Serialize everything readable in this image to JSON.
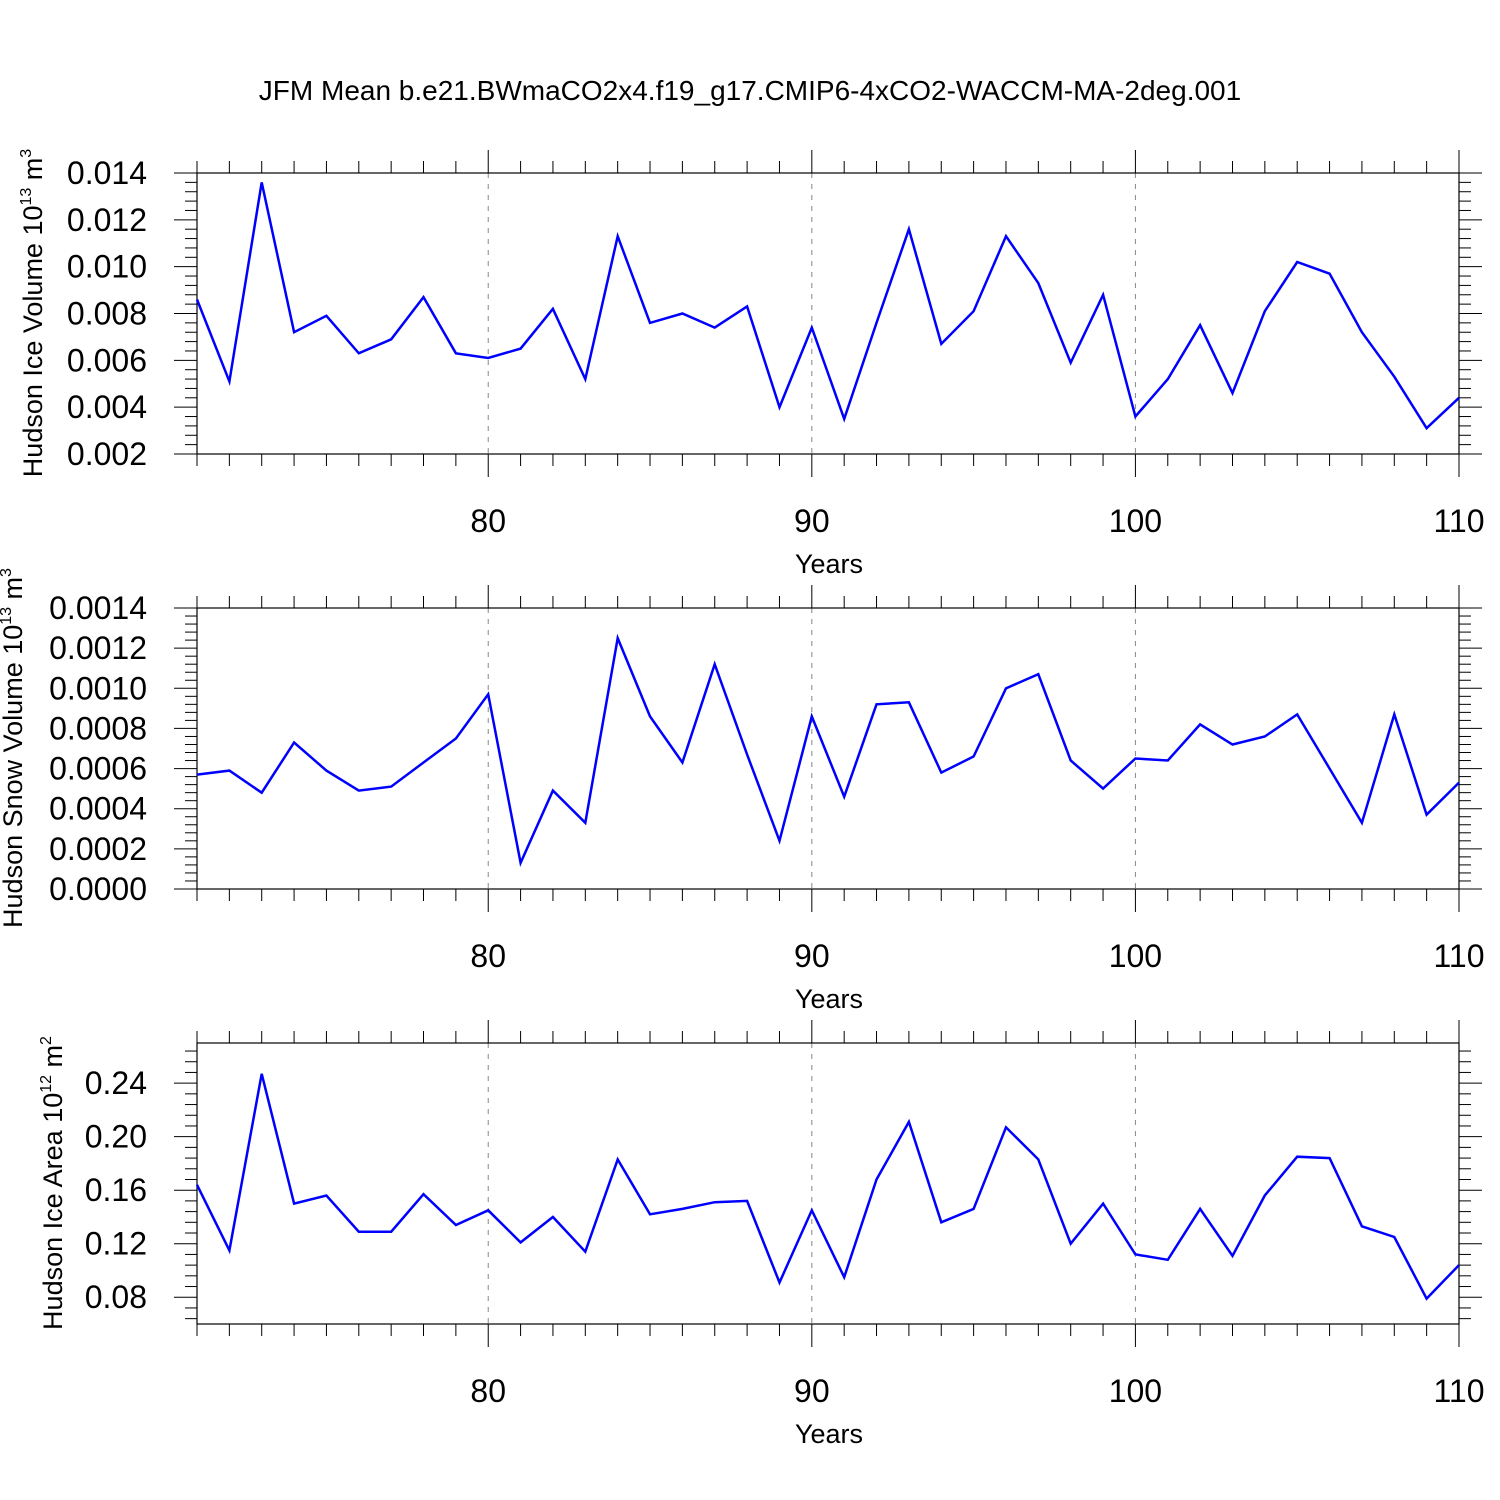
{
  "figure": {
    "title": "JFM Mean b.e21.BWmaCO2x4.f19_g17.CMIP6-4xCO2-WACCM-MA-2deg.001"
  },
  "colors": {
    "line": "#0000ff",
    "axis": "#000000",
    "grid": "#888888"
  },
  "chart_data": [
    {
      "type": "line",
      "title": "JFM Mean b.e21.BWmaCO2x4.f19_g17.CMIP6-4xCO2-WACCM-MA-2deg.001",
      "xlabel": "Years",
      "ylabel": {
        "text": "Hudson Ice Volume 10",
        "sup": "13",
        "unit": " m",
        "unitsup": "3"
      },
      "xlim": [
        71,
        110
      ],
      "ylim": [
        0.002,
        0.014
      ],
      "xticks": [
        80,
        90,
        100,
        110
      ],
      "xtick_labels": [
        "80",
        "90",
        "100",
        "110"
      ],
      "yticks": [
        0.002,
        0.004,
        0.006,
        0.008,
        0.01,
        0.012,
        0.014
      ],
      "ytick_labels": [
        "0.002",
        "0.004",
        "0.006",
        "0.008",
        "0.010",
        "0.012",
        "0.014"
      ],
      "grid": "vertical dashed at major x ticks",
      "series": [
        {
          "name": "Hudson Ice Volume",
          "x": [
            71,
            72,
            73,
            74,
            75,
            76,
            77,
            78,
            79,
            80,
            81,
            82,
            83,
            84,
            85,
            86,
            87,
            88,
            89,
            90,
            91,
            92,
            93,
            94,
            95,
            96,
            97,
            98,
            99,
            100,
            101,
            102,
            103,
            104,
            105,
            106,
            107,
            108,
            109,
            110
          ],
          "values": [
            0.0086,
            0.0051,
            0.0136,
            0.0072,
            0.0079,
            0.0063,
            0.0069,
            0.0087,
            0.0063,
            0.0061,
            0.0065,
            0.0082,
            0.0052,
            0.0113,
            0.0076,
            0.008,
            0.0074,
            0.0083,
            0.004,
            0.0074,
            0.0035,
            0.0076,
            0.0116,
            0.0067,
            0.0081,
            0.0113,
            0.0093,
            0.0059,
            0.0088,
            0.0036,
            0.0052,
            0.0075,
            0.0046,
            0.0081,
            0.0102,
            0.0097,
            0.0072,
            0.0053,
            0.0031,
            0.0044
          ]
        }
      ]
    },
    {
      "type": "line",
      "xlabel": "Years",
      "ylabel": {
        "text": "Hudson Snow Volume 10",
        "sup": "13",
        "unit": " m",
        "unitsup": "3"
      },
      "xlim": [
        71,
        110
      ],
      "ylim": [
        0.0,
        0.0014
      ],
      "xticks": [
        80,
        90,
        100,
        110
      ],
      "xtick_labels": [
        "80",
        "90",
        "100",
        "110"
      ],
      "yticks": [
        0.0,
        0.0002,
        0.0004,
        0.0006,
        0.0008,
        0.001,
        0.0012,
        0.0014
      ],
      "ytick_labels": [
        "0.0000",
        "0.0002",
        "0.0004",
        "0.0006",
        "0.0008",
        "0.0010",
        "0.0012",
        "0.0014"
      ],
      "grid": "vertical dashed at major x ticks",
      "series": [
        {
          "name": "Hudson Snow Volume",
          "x": [
            71,
            72,
            73,
            74,
            75,
            76,
            77,
            78,
            79,
            80,
            81,
            82,
            83,
            84,
            85,
            86,
            87,
            88,
            89,
            90,
            91,
            92,
            93,
            94,
            95,
            96,
            97,
            98,
            99,
            100,
            101,
            102,
            103,
            104,
            105,
            106,
            107,
            108,
            109,
            110
          ],
          "values": [
            0.00057,
            0.00059,
            0.00048,
            0.00073,
            0.00059,
            0.00049,
            0.00051,
            0.00063,
            0.00075,
            0.00097,
            0.00013,
            0.00049,
            0.00033,
            0.00125,
            0.00086,
            0.00063,
            0.00112,
            0.00067,
            0.00024,
            0.00086,
            0.00046,
            0.00092,
            0.00093,
            0.00058,
            0.00066,
            0.001,
            0.00107,
            0.00064,
            0.0005,
            0.00065,
            0.00064,
            0.00082,
            0.00072,
            0.00076,
            0.00087,
            0.0006,
            0.00033,
            0.00087,
            0.00037,
            0.00053
          ]
        }
      ]
    },
    {
      "type": "line",
      "xlabel": "Years",
      "ylabel": {
        "text": "Hudson Ice Area 10",
        "sup": "12",
        "unit": " m",
        "unitsup": "2"
      },
      "xlim": [
        71,
        110
      ],
      "ylim": [
        0.06,
        0.27
      ],
      "xticks": [
        80,
        90,
        100,
        110
      ],
      "xtick_labels": [
        "80",
        "90",
        "100",
        "110"
      ],
      "yticks": [
        0.08,
        0.12,
        0.16,
        0.2,
        0.24
      ],
      "ytick_labels": [
        "0.08",
        "0.12",
        "0.16",
        "0.20",
        "0.24"
      ],
      "grid": "vertical dashed at major x ticks",
      "series": [
        {
          "name": "Hudson Ice Area",
          "x": [
            71,
            72,
            73,
            74,
            75,
            76,
            77,
            78,
            79,
            80,
            81,
            82,
            83,
            84,
            85,
            86,
            87,
            88,
            89,
            90,
            91,
            92,
            93,
            94,
            95,
            96,
            97,
            98,
            99,
            100,
            101,
            102,
            103,
            104,
            105,
            106,
            107,
            108,
            109,
            110
          ],
          "values": [
            0.164,
            0.115,
            0.247,
            0.15,
            0.156,
            0.129,
            0.129,
            0.157,
            0.134,
            0.145,
            0.121,
            0.14,
            0.114,
            0.183,
            0.142,
            0.146,
            0.151,
            0.152,
            0.091,
            0.145,
            0.095,
            0.168,
            0.211,
            0.136,
            0.146,
            0.207,
            0.183,
            0.12,
            0.15,
            0.112,
            0.108,
            0.146,
            0.111,
            0.156,
            0.185,
            0.184,
            0.133,
            0.125,
            0.079,
            0.104
          ]
        }
      ]
    }
  ]
}
